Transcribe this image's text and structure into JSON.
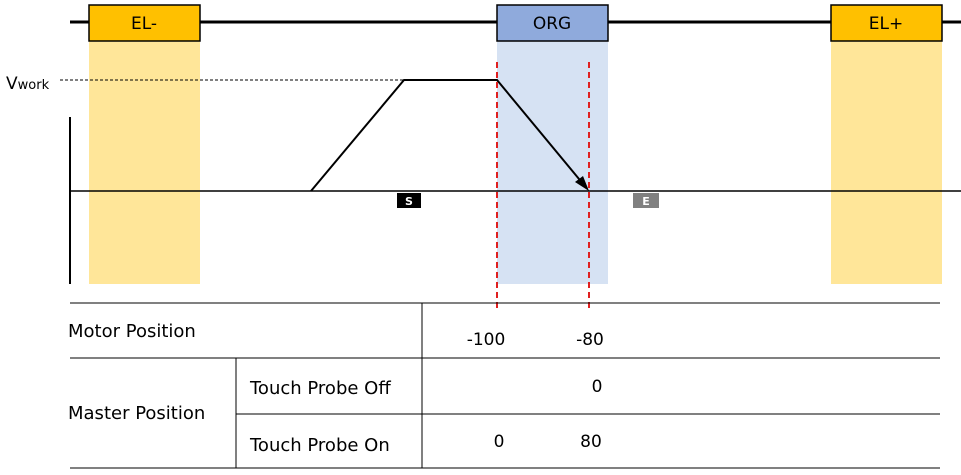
{
  "colors": {
    "limit_fill": "#ffc000",
    "limit_zone": "#ffe699",
    "org_fill": "#8faadc",
    "org_zone": "#d6e2f3",
    "dashed_marker": "#e02020",
    "start_badge": "#000000",
    "end_badge": "#808080"
  },
  "diagram": {
    "el_minus_label": "EL-",
    "org_label": "ORG",
    "el_plus_label": "EL+",
    "velocity_label_main": "V",
    "velocity_label_sub": "work",
    "start_badge": "S",
    "end_badge": "E"
  },
  "table": {
    "motor_position_label": "Motor Position",
    "motor_values": [
      "-100",
      "-80"
    ],
    "master_position_label": "Master Position",
    "rows": [
      {
        "label": "Touch Probe Off",
        "values": [
          "0"
        ]
      },
      {
        "label": "Touch Probe On",
        "values": [
          "0",
          "80"
        ]
      }
    ]
  }
}
